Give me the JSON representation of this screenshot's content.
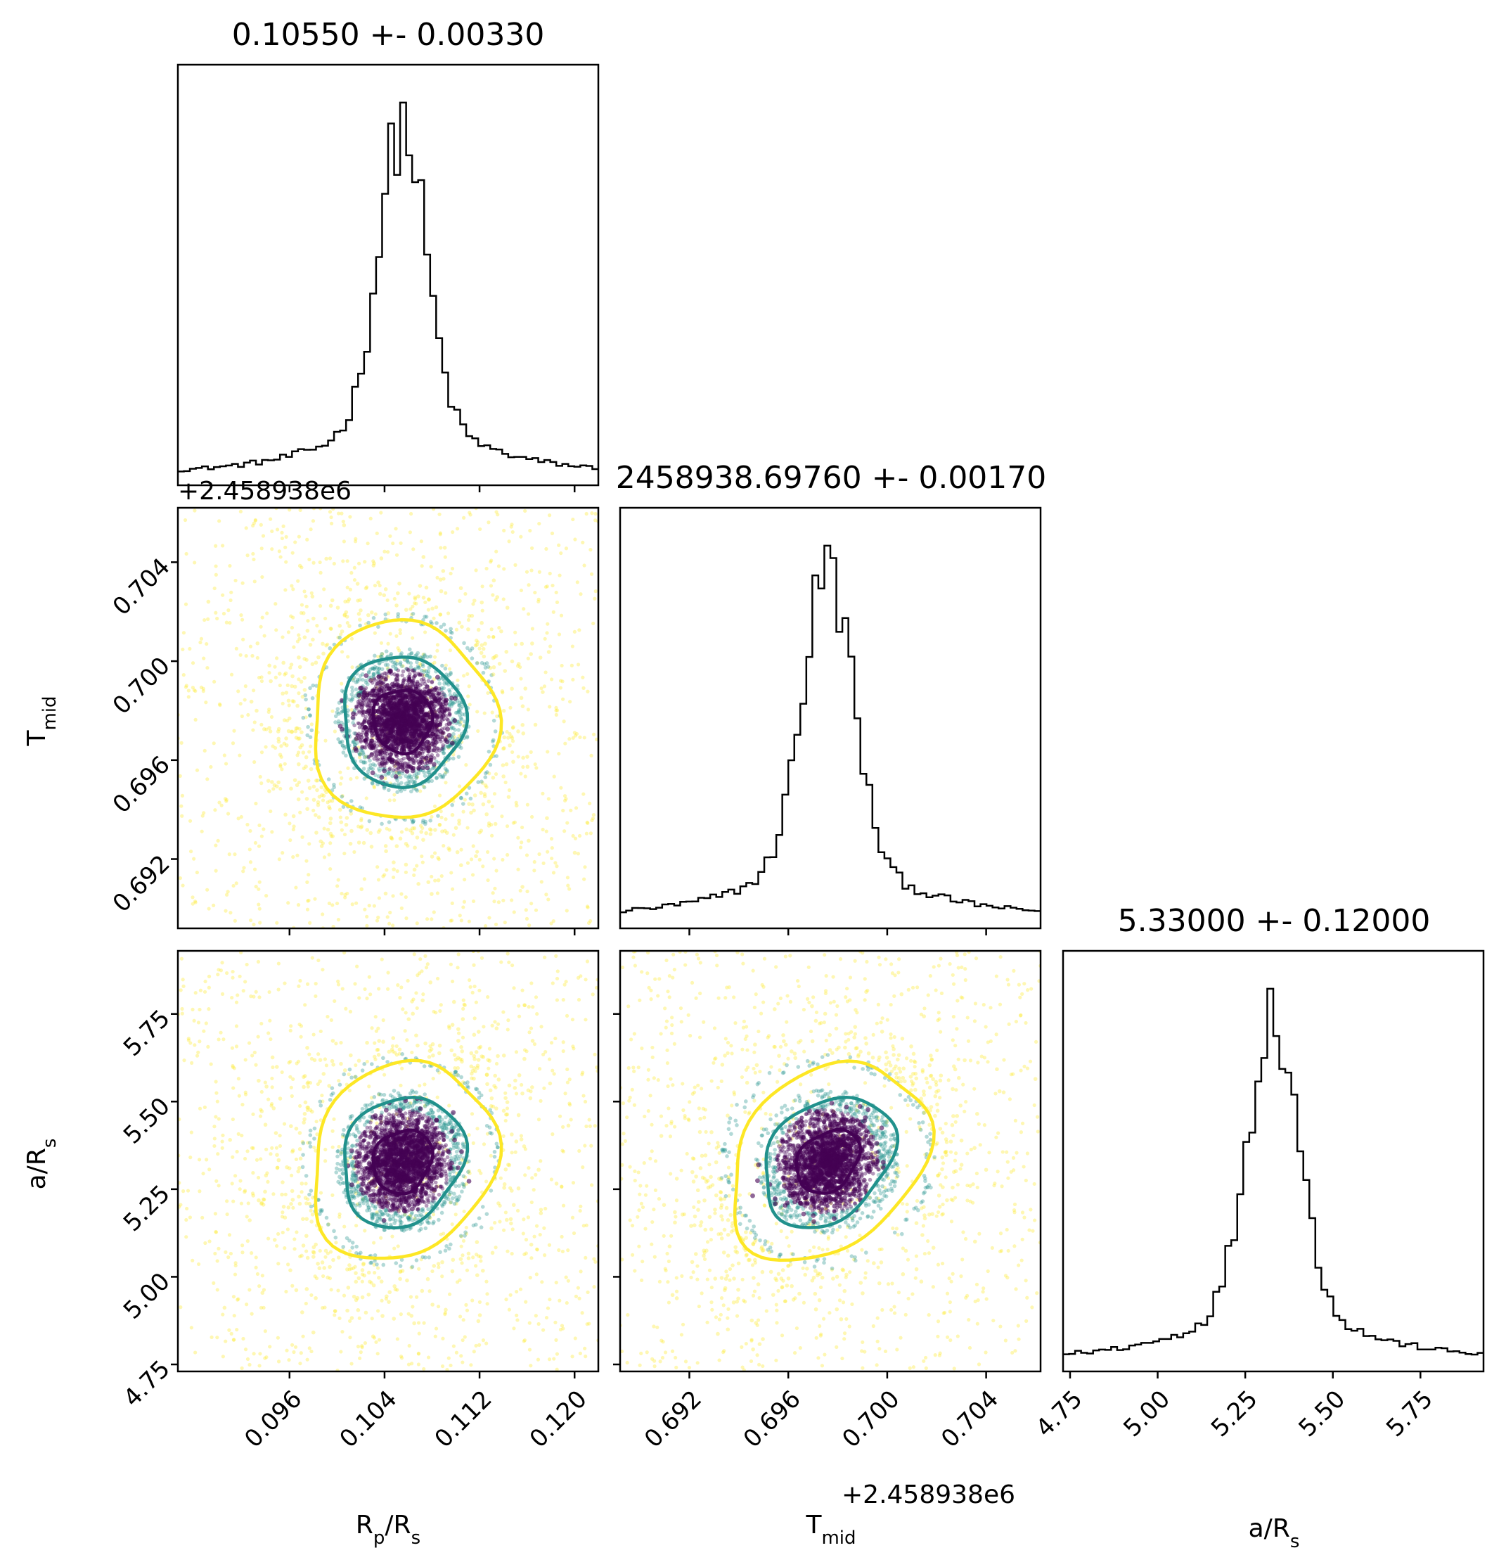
{
  "chart_data": {
    "type": "scatter",
    "kind": "corner-plot",
    "parameters": [
      {
        "name": "R_p/R_s",
        "label_main": "R",
        "label_sub": "p",
        "label_rest": "/R",
        "label_sub2": "s",
        "median": 0.1055,
        "sigma": 0.0033,
        "range": [
          0.0866,
          0.122
        ]
      },
      {
        "name": "T_mid",
        "label_main": "T",
        "label_sub": "mid",
        "offset": 2458938,
        "median": 0.6976,
        "sigma": 0.0017,
        "range": [
          0.6892,
          0.7062
        ]
      },
      {
        "name": "a/R_s",
        "label_main": "a/R",
        "label_sub": "s",
        "median": 5.33,
        "sigma": 0.12,
        "range": [
          4.73,
          5.93
        ]
      }
    ],
    "titles": [
      "0.10550 +- 0.00330",
      "2458938.69760 +- 0.00170",
      "5.33000 +- 0.12000"
    ],
    "offset_text": "+2.458938e6",
    "ticks": {
      "R_p/R_s": [
        "0.096",
        "0.104",
        "0.112",
        "0.120"
      ],
      "T_mid": [
        "0.692",
        "0.696",
        "0.700",
        "0.704"
      ],
      "a/R_s": [
        "4.75",
        "5.00",
        "5.25",
        "5.50",
        "5.75"
      ]
    },
    "tick_values": {
      "R_p/R_s": [
        0.096,
        0.104,
        0.112,
        0.12
      ],
      "T_mid": [
        0.692,
        0.696,
        0.7,
        0.704
      ],
      "a/R_s": [
        4.75,
        5.0,
        5.25,
        5.5,
        5.75
      ]
    },
    "contour_levels": [
      "1-sigma",
      "2-sigma",
      "3-sigma"
    ],
    "colors": {
      "inner": "#440154",
      "middle": "#21918c",
      "outer": "#fde725",
      "hist": "#000000"
    }
  }
}
